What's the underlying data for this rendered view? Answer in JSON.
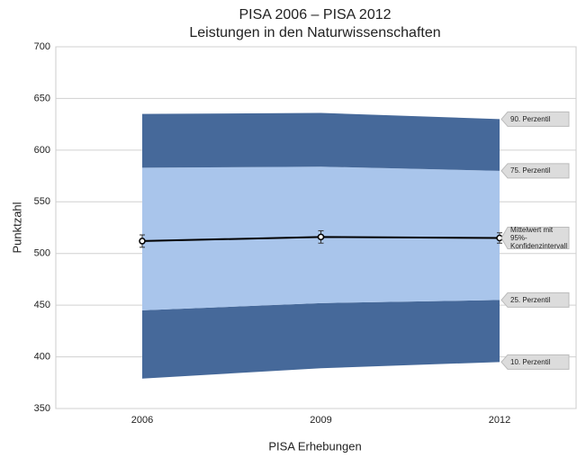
{
  "chart_data": {
    "type": "line",
    "title": "PISA 2006 – PISA 2012",
    "subtitle": "Leistungen in den Naturwissenschaften",
    "x_label": "PISA Erhebungen",
    "y_label": "Punktzahl",
    "categories": [
      "2006",
      "2009",
      "2012"
    ],
    "ylim": [
      350,
      700
    ],
    "yticks": [
      350,
      400,
      450,
      500,
      550,
      600,
      650,
      700
    ],
    "grid": true,
    "percentiles": [
      {
        "name": "10. Perzentil",
        "values": [
          379,
          389,
          395
        ]
      },
      {
        "name": "25. Perzentil",
        "values": [
          445,
          452,
          455
        ]
      },
      {
        "name": "75. Perzentil",
        "values": [
          583,
          584,
          580
        ]
      },
      {
        "name": "90. Perzentil",
        "values": [
          635,
          636,
          630
        ]
      }
    ],
    "band_colors": [
      "#46699a",
      "#a9c5eb",
      "#46699a"
    ],
    "mean": {
      "name": "Mittelwert mit 95%-Konfidenzintervall",
      "values": [
        512,
        516,
        515
      ],
      "errors": [
        6,
        6,
        5
      ],
      "color": "#000000"
    }
  }
}
